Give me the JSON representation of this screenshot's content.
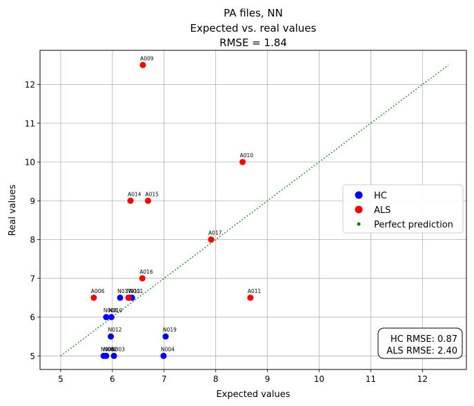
{
  "chart_data": {
    "type": "scatter",
    "title_lines": [
      "PA files, NN",
      "Expected vs. real values",
      "RMSE = 1.84"
    ],
    "xlabel": "Expected values",
    "ylabel": "Real values",
    "xlim": [
      4.6,
      12.85
    ],
    "ylim": [
      4.65,
      12.88
    ],
    "x_ticks": [
      5,
      6,
      7,
      8,
      9,
      10,
      11,
      12
    ],
    "y_ticks": [
      5,
      6,
      7,
      8,
      9,
      10,
      11,
      12
    ],
    "grid": true,
    "series": [
      {
        "name": "HC",
        "color": "#0000ff",
        "points": [
          {
            "label": "N001",
            "x": 6.38,
            "y": 6.5
          },
          {
            "label": "N011",
            "x": 6.33,
            "y": 6.5
          },
          {
            "label": "N017",
            "x": 6.15,
            "y": 6.5
          },
          {
            "label": "N008",
            "x": 5.88,
            "y": 6.0
          },
          {
            "label": "N010",
            "x": 5.98,
            "y": 6.0
          },
          {
            "label": "N012",
            "x": 5.97,
            "y": 5.5
          },
          {
            "label": "N019",
            "x": 7.03,
            "y": 5.5
          },
          {
            "label": "N006",
            "x": 5.83,
            "y": 5.0
          },
          {
            "label": "N002",
            "x": 5.88,
            "y": 5.0
          },
          {
            "label": "N003",
            "x": 6.03,
            "y": 5.0
          },
          {
            "label": "N004",
            "x": 6.99,
            "y": 5.0
          }
        ]
      },
      {
        "name": "ALS",
        "color": "#ff0000",
        "points": [
          {
            "label": "A009",
            "x": 6.59,
            "y": 12.5
          },
          {
            "label": "A010",
            "x": 8.52,
            "y": 10.0
          },
          {
            "label": "A014",
            "x": 6.35,
            "y": 9.0
          },
          {
            "label": "A015",
            "x": 6.69,
            "y": 9.0
          },
          {
            "label": "A017",
            "x": 7.91,
            "y": 8.0
          },
          {
            "label": "A016",
            "x": 6.58,
            "y": 7.0
          },
          {
            "label": "A006",
            "x": 5.64,
            "y": 6.5
          },
          {
            "label": "A011",
            "x": 8.67,
            "y": 6.5
          },
          {
            "label": "",
            "x": 6.31,
            "y": 6.5
          }
        ]
      }
    ],
    "perfect_line": {
      "name": "Perfect prediction",
      "color": "#008000",
      "x": [
        5,
        12.5
      ],
      "y": [
        5,
        12.5
      ]
    },
    "legend": {
      "position": "center-right",
      "entries": [
        "HC",
        "ALS",
        "Perfect prediction"
      ]
    },
    "annotation": {
      "lines": [
        "HC RMSE: 0.87",
        "ALS RMSE: 2.40"
      ],
      "position": "bottom-right"
    }
  }
}
